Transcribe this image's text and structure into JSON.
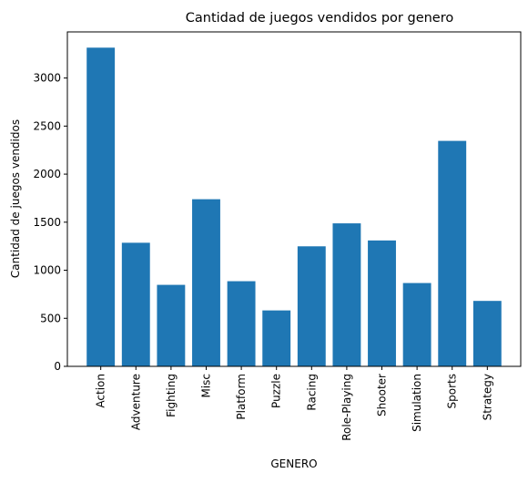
{
  "chart_data": {
    "type": "bar",
    "title": "Cantidad de juegos vendidos por genero",
    "xlabel": "GENERO",
    "ylabel": "Cantidad de juegos vendidos",
    "categories": [
      "Action",
      "Adventure",
      "Fighting",
      "Misc",
      "Platform",
      "Puzzle",
      "Racing",
      "Role-Playing",
      "Shooter",
      "Simulation",
      "Sports",
      "Strategy"
    ],
    "values": [
      3316,
      1286,
      848,
      1739,
      886,
      582,
      1249,
      1488,
      1310,
      867,
      2346,
      681
    ],
    "ylim": [
      0,
      3480
    ],
    "yticks": [
      0,
      500,
      1000,
      1500,
      2000,
      2500,
      3000
    ],
    "grid": false,
    "legend": "none",
    "bar_color": "#1f77b4"
  }
}
